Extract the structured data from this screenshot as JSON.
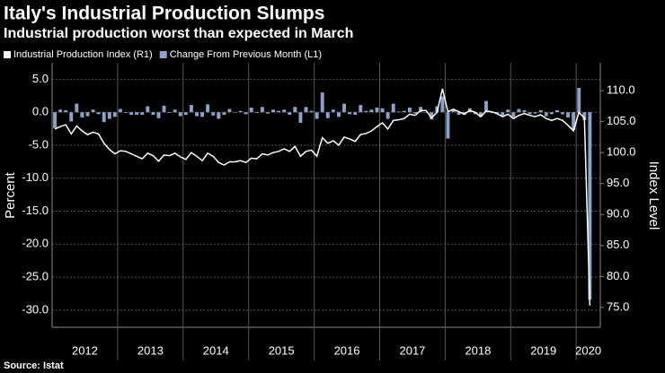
{
  "chart_data": {
    "type": "combo",
    "title": "Italy's Industrial Production Slumps",
    "subtitle": "Industrial production worst than expected in March",
    "source": "Source: Istat",
    "ylabel": "Percent",
    "y2label": "Index Level",
    "categories": [
      "2012",
      null,
      null,
      null,
      null,
      null,
      null,
      null,
      null,
      null,
      null,
      null,
      "2013",
      null,
      null,
      null,
      null,
      null,
      null,
      null,
      null,
      null,
      null,
      null,
      "2014",
      null,
      null,
      null,
      null,
      null,
      null,
      null,
      null,
      null,
      null,
      null,
      "2015",
      null,
      null,
      null,
      null,
      null,
      null,
      null,
      null,
      null,
      null,
      null,
      "2016",
      null,
      null,
      null,
      null,
      null,
      null,
      null,
      null,
      null,
      null,
      null,
      "2017",
      null,
      null,
      null,
      null,
      null,
      null,
      null,
      null,
      null,
      null,
      null,
      "2018",
      null,
      null,
      null,
      null,
      null,
      null,
      null,
      null,
      null,
      null,
      null,
      "2019",
      null,
      null,
      null,
      null,
      null,
      null,
      null,
      null,
      null,
      null,
      null,
      "2020",
      null,
      null
    ],
    "series": [
      {
        "name": "Industrial Production Index (R1)",
        "type": "line",
        "axis": "y2",
        "color": "#ffffff",
        "values": [
          103.8,
          104.2,
          104.5,
          103.0,
          104.3,
          103.5,
          102.9,
          103.3,
          103.0,
          101.5,
          100.5,
          99.8,
          100.3,
          100.2,
          99.8,
          99.4,
          99.0,
          99.9,
          99.5,
          98.6,
          99.6,
          99.5,
          99.9,
          99.3,
          98.9,
          100.0,
          99.4,
          98.7,
          99.9,
          99.4,
          98.4,
          98.0,
          98.5,
          98.5,
          98.7,
          98.4,
          99.1,
          99.0,
          99.8,
          99.6,
          100.0,
          100.2,
          100.6,
          100.2,
          101.0,
          99.4,
          100.2,
          100.4,
          99.4,
          102.4,
          101.5,
          101.9,
          101.2,
          102.5,
          102.2,
          101.8,
          102.9,
          103.1,
          103.5,
          104.2,
          104.8,
          103.8,
          105.2,
          105.3,
          105.5,
          106.2,
          106.0,
          106.8,
          106.8,
          105.6,
          106.5,
          110.3,
          106.6,
          107.0,
          106.6,
          106.2,
          106.8,
          106.5,
          105.8,
          106.7,
          106.6,
          106.3,
          105.8,
          106.2,
          105.5,
          106.0,
          106.3,
          106.0,
          105.8,
          106.1,
          105.5,
          105.2,
          105.5,
          105.2,
          104.4,
          103.5,
          106.5,
          105.6,
          75.3
        ]
      },
      {
        "name": "Change From Previous Month (L1)",
        "type": "bar",
        "color": "#8da2c9",
        "values": [
          -2.4,
          0.4,
          0.3,
          -1.4,
          1.3,
          -0.8,
          -0.6,
          0.4,
          -0.3,
          -1.5,
          -1.0,
          -0.7,
          0.5,
          -0.1,
          -0.4,
          -0.4,
          -0.4,
          0.9,
          -0.4,
          -0.9,
          1.0,
          -0.1,
          0.4,
          -0.6,
          -0.4,
          1.1,
          -0.6,
          -0.7,
          1.2,
          -0.5,
          -1.0,
          -0.4,
          0.5,
          0.0,
          0.2,
          -0.3,
          0.7,
          -0.1,
          0.8,
          -0.2,
          0.4,
          0.2,
          0.4,
          -0.4,
          0.8,
          -1.6,
          0.8,
          0.2,
          -1.0,
          3.0,
          -0.9,
          0.4,
          -0.7,
          1.3,
          -0.3,
          -0.4,
          1.1,
          0.2,
          0.4,
          0.7,
          0.6,
          -1.0,
          1.3,
          0.1,
          0.2,
          0.7,
          -0.2,
          0.8,
          0.0,
          -1.1,
          0.9,
          2.4,
          -4.0,
          0.4,
          -0.4,
          -0.4,
          0.6,
          -0.3,
          -0.7,
          1.7,
          -0.1,
          -0.3,
          -0.5,
          0.4,
          -0.7,
          0.5,
          0.3,
          -0.3,
          -0.2,
          0.3,
          -0.6,
          -0.3,
          0.3,
          -0.3,
          -0.8,
          -2.7,
          3.7,
          -1.2,
          -28.4
        ]
      }
    ],
    "ylim": [
      -32.6,
      7.5
    ],
    "yticks": [
      {
        "value": 5,
        "label": "5.0"
      },
      {
        "value": 0,
        "label": "0.0"
      },
      {
        "value": -5,
        "label": "-5.0"
      },
      {
        "value": -10,
        "label": "-10.0"
      },
      {
        "value": -15,
        "label": "-15.0"
      },
      {
        "value": -20,
        "label": "-20.0"
      },
      {
        "value": -25,
        "label": "-25.0"
      },
      {
        "value": -30,
        "label": "-30.0"
      }
    ],
    "y2lim": [
      71.8,
      114.5
    ],
    "y2ticks": [
      {
        "value": 75,
        "label": "75.0"
      },
      {
        "value": 80,
        "label": "80.0"
      },
      {
        "value": 85,
        "label": "85.0"
      },
      {
        "value": 90,
        "label": "90.0"
      },
      {
        "value": 95,
        "label": "95.0"
      },
      {
        "value": 100,
        "label": "100.0"
      },
      {
        "value": 105,
        "label": "105.0"
      },
      {
        "value": 110,
        "label": "110.0"
      }
    ],
    "grid": true
  }
}
